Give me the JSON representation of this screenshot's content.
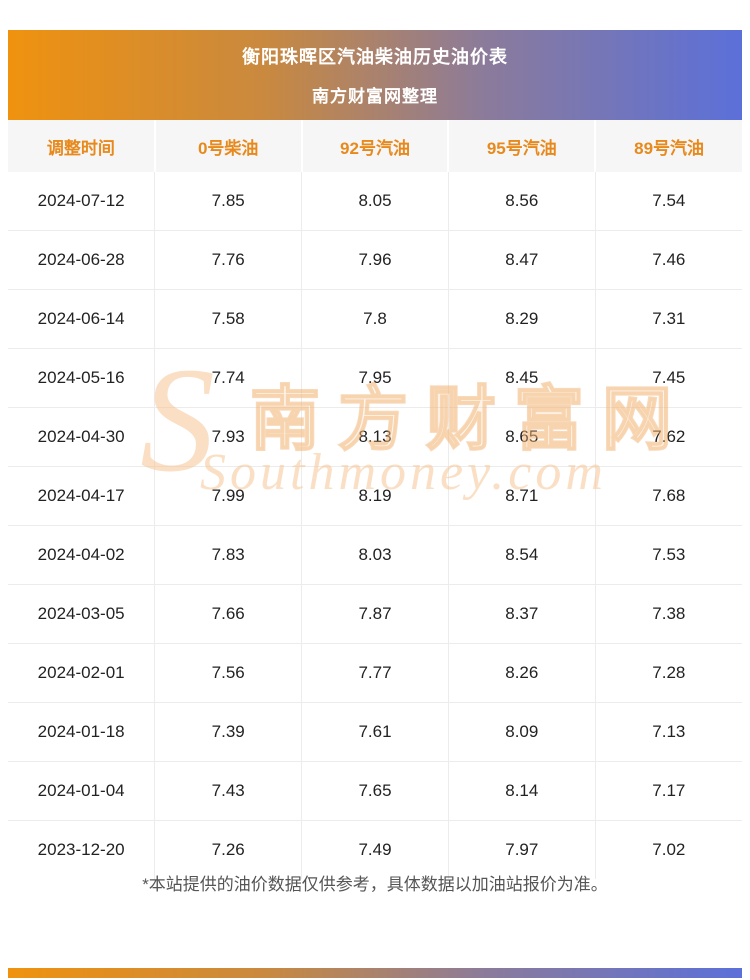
{
  "header": {
    "title": "衡阳珠晖区汽油柴油历史油价表",
    "subtitle": "南方财富网整理"
  },
  "chart_data": {
    "type": "table",
    "title": "衡阳珠晖区汽油柴油历史油价表",
    "columns": [
      "调整时间",
      "0号柴油",
      "92号汽油",
      "95号汽油",
      "89号汽油"
    ],
    "rows": [
      [
        "2024-07-12",
        "7.85",
        "8.05",
        "8.56",
        "7.54"
      ],
      [
        "2024-06-28",
        "7.76",
        "7.96",
        "8.47",
        "7.46"
      ],
      [
        "2024-06-14",
        "7.58",
        "7.8",
        "8.29",
        "7.31"
      ],
      [
        "2024-05-16",
        "7.74",
        "7.95",
        "8.45",
        "7.45"
      ],
      [
        "2024-04-30",
        "7.93",
        "8.13",
        "8.65",
        "7.62"
      ],
      [
        "2024-04-17",
        "7.99",
        "8.19",
        "8.71",
        "7.68"
      ],
      [
        "2024-04-02",
        "7.83",
        "8.03",
        "8.54",
        "7.53"
      ],
      [
        "2024-03-05",
        "7.66",
        "7.87",
        "8.37",
        "7.38"
      ],
      [
        "2024-02-01",
        "7.56",
        "7.77",
        "8.26",
        "7.28"
      ],
      [
        "2024-01-18",
        "7.39",
        "7.61",
        "8.09",
        "7.13"
      ],
      [
        "2024-01-04",
        "7.43",
        "7.65",
        "8.14",
        "7.17"
      ],
      [
        "2023-12-20",
        "7.26",
        "7.49",
        "7.97",
        "7.02"
      ]
    ],
    "legend_position": "none",
    "grid": true
  },
  "watermark": {
    "logo": "S",
    "text": "南方财富网",
    "subtext": "Southmoney.com"
  },
  "footer": {
    "note": "*本站提供的油价数据仅供参考，具体数据以加油站报价为准。"
  },
  "colors": {
    "banner_gradient_left": "#ef920f",
    "banner_gradient_right": "#5b70d9",
    "banner_text": "#ffffff",
    "column_header_bg": "#f6f6f6",
    "column_header_text": "#e8891c",
    "cell_text": "#222222",
    "grid_line": "#ececec",
    "watermark": "#f5b87a",
    "footer_text": "#555555"
  }
}
